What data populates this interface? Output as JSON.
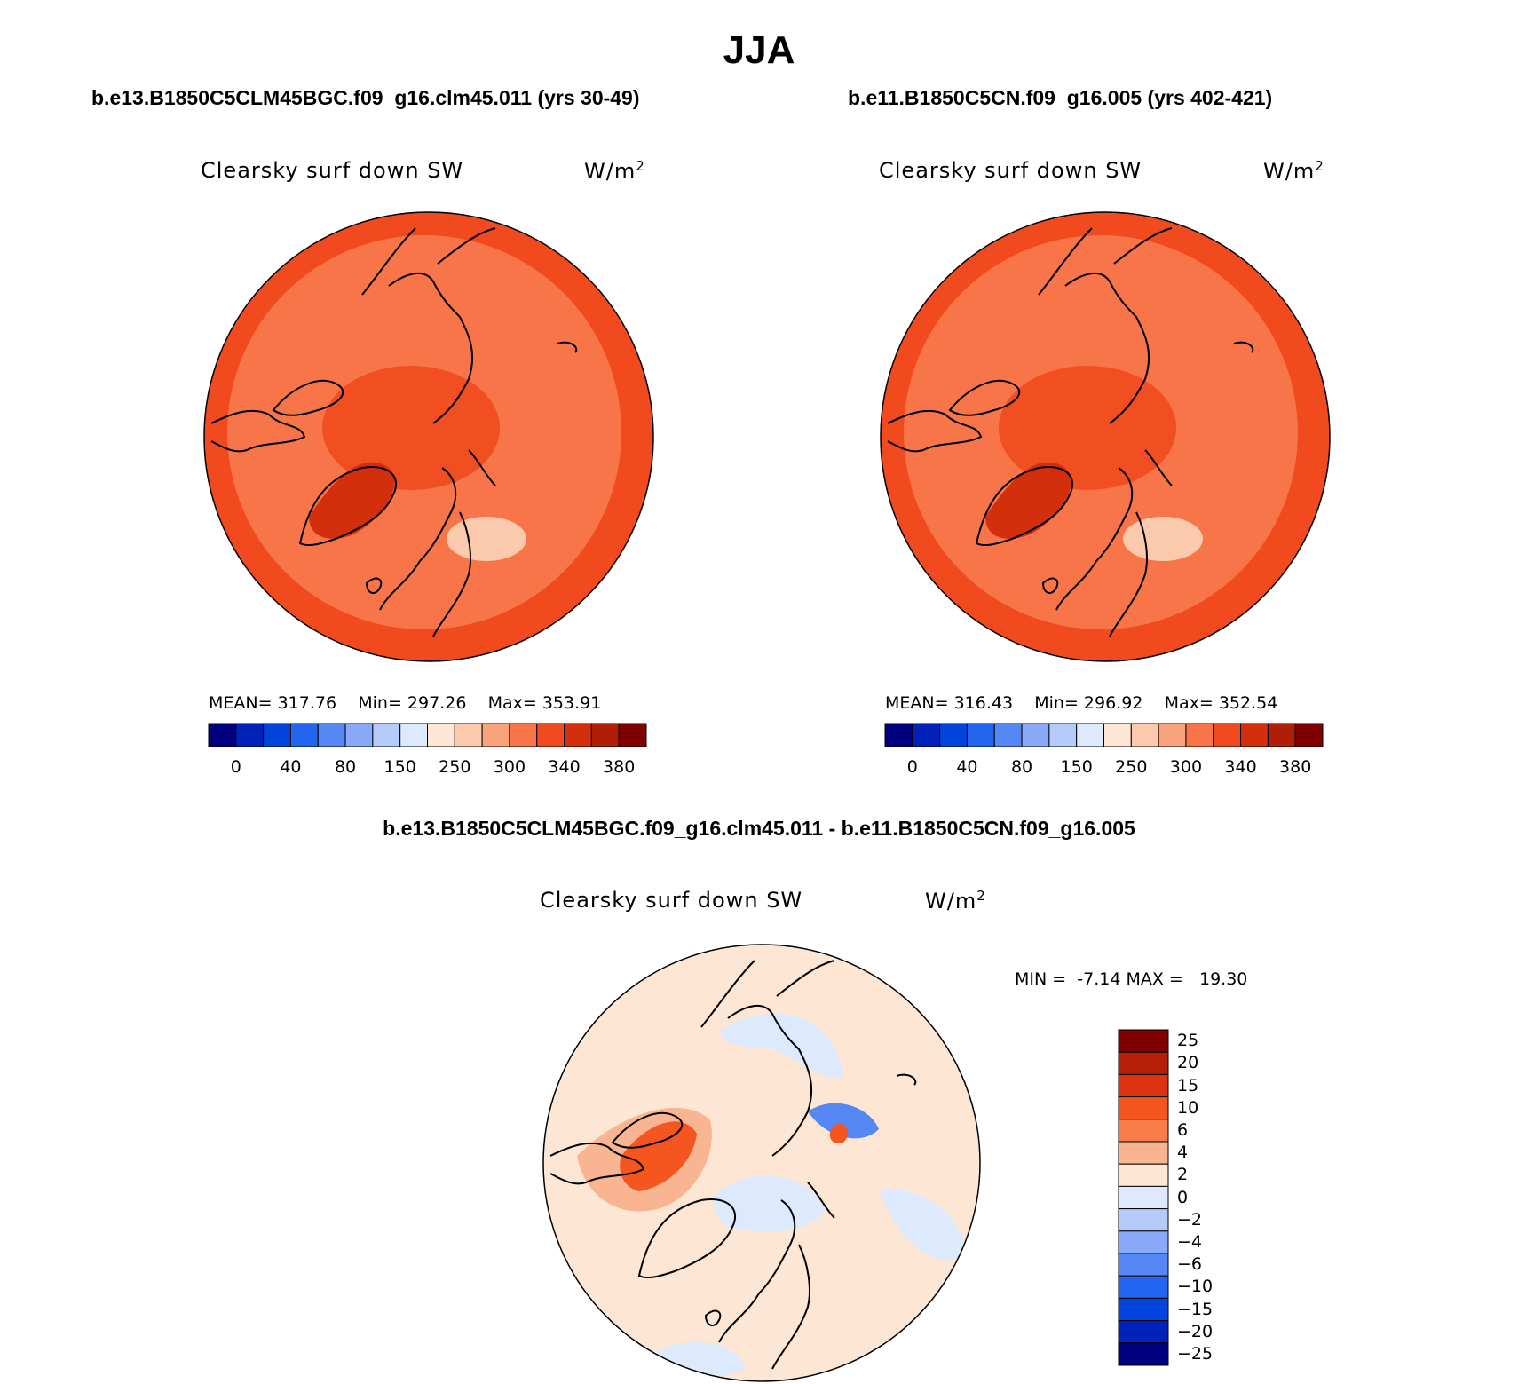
{
  "title": "JJA",
  "panels": [
    {
      "case": "b.e13.B1850C5CLM45BGC.f09_g16.clm45.011 (yrs 30-49)",
      "variable": "Clearsky surf down SW",
      "units": "W/m",
      "units_sup": "2",
      "stats": {
        "mean_label": "MEAN=",
        "mean": "317.76",
        "min_label": "Min=",
        "min": "297.26",
        "max_label": "Max=",
        "max": "353.91"
      }
    },
    {
      "case": "b.e11.B1850C5CN.f09_g16.005 (yrs 402-421)",
      "variable": "Clearsky surf down SW",
      "units": "W/m",
      "units_sup": "2",
      "stats": {
        "mean_label": "MEAN=",
        "mean": "316.43",
        "min_label": "Min=",
        "min": "296.92",
        "max_label": "Max=",
        "max": "352.54"
      }
    }
  ],
  "abs_colorbar": {
    "colors": [
      "#00007f",
      "#0022b8",
      "#0044dd",
      "#2266f0",
      "#5588f5",
      "#88aaf8",
      "#b5cbfa",
      "#dde9fc",
      "#fde6d4",
      "#fbc9ac",
      "#f9a37d",
      "#f77548",
      "#f04a1e",
      "#d42f0c",
      "#b01e08",
      "#7f0000"
    ],
    "labels": [
      "0",
      "40",
      "80",
      "150",
      "250",
      "300",
      "340",
      "380"
    ]
  },
  "diff": {
    "title": "b.e13.B1850C5CLM45BGC.f09_g16.clm45.011 - b.e11.B1850C5CN.f09_g16.005",
    "variable": "Clearsky surf down SW",
    "units": "W/m",
    "units_sup": "2",
    "stats": {
      "min_label": "MIN =",
      "min": "-7.14",
      "max_label": "MAX =",
      "max": "19.30"
    }
  },
  "diff_colorbar": {
    "colors": [
      "#7f0000",
      "#b52008",
      "#dd3311",
      "#f5551e",
      "#f77e4a",
      "#f9b592",
      "#fde6d4",
      "#dde9fc",
      "#b5cbfa",
      "#88aaf8",
      "#5588f5",
      "#2266f0",
      "#0044dd",
      "#0022b8",
      "#00007f"
    ],
    "labels": [
      "25",
      "20",
      "15",
      "10",
      "6",
      "4",
      "2",
      "0",
      "-2",
      "-4",
      "-6",
      "-10",
      "-15",
      "-20",
      "-25"
    ]
  },
  "map_colors": {
    "outer": "#f04a1e",
    "mid": "#f77548",
    "pole": "#f04a1e",
    "greenland": "#d42f0c",
    "low": "#fbc9ac",
    "diff_background": "#fde6d4",
    "diff_pos": "#f9b592",
    "diff_strong_pos": "#f5551e",
    "diff_neg": "#dde9fc",
    "diff_strong_neg": "#5588f5"
  }
}
